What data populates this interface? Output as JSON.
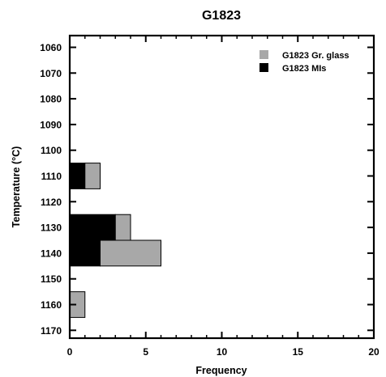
{
  "chart_data": {
    "type": "bar",
    "orientation": "horizontal",
    "stacked": true,
    "title": "G1823",
    "xlabel": "Frequency",
    "ylabel": "Temperature (°C)",
    "xlim": [
      0,
      20
    ],
    "x_ticks": [
      "0",
      "5",
      "10",
      "15",
      "20"
    ],
    "categories": [
      "1060",
      "1070",
      "1080",
      "1090",
      "1100",
      "1110",
      "1120",
      "1130",
      "1140",
      "1150",
      "1160",
      "1170"
    ],
    "series": [
      {
        "name": "G1823 MIs",
        "color": "#000000",
        "values": [
          0,
          0,
          0,
          0,
          0,
          1,
          0,
          3,
          2,
          0,
          0,
          0
        ]
      },
      {
        "name": "G1823 Gr. glass",
        "color": "#a8a8a8",
        "values": [
          0,
          0,
          0,
          0,
          0,
          1,
          0,
          1,
          4,
          0,
          1,
          0
        ]
      }
    ],
    "legend_position": "top-right",
    "grid": false
  }
}
